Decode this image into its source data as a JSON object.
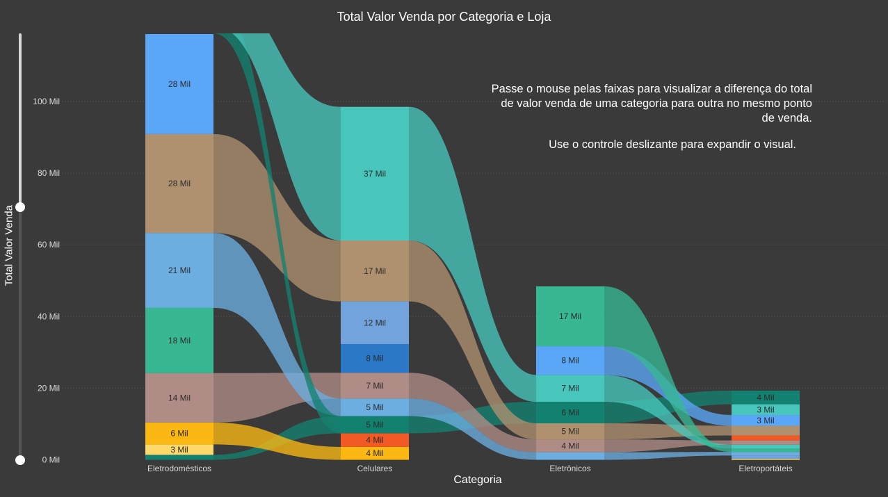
{
  "title": "Total Valor Venda por Categoria e Loja",
  "notes": {
    "line1": "Passe o mouse pelas faixas para visualizar a diferença do total de valor venda de uma categoria para outra no mesmo ponto de venda.",
    "line2": "Use o controle deslizante para expandir o visual."
  },
  "colors": {
    "background": "#3a3a3a",
    "gridline": "#5a5a5a",
    "axis_text": "#d9d9d9",
    "segment_label": "#2b2b2b"
  },
  "chart_data": {
    "type": "ribbon",
    "title": "Total Valor Venda por Categoria e Loja",
    "xlabel": "Categoria",
    "ylabel": "Total Valor Venda",
    "ylim": [
      0,
      119
    ],
    "yticks": [
      {
        "value": 0,
        "label": "0 Mil"
      },
      {
        "value": 20,
        "label": "20 Mil"
      },
      {
        "value": 40,
        "label": "40 Mil"
      },
      {
        "value": 60,
        "label": "60 Mil"
      },
      {
        "value": 80,
        "label": "80 Mil"
      },
      {
        "value": 100,
        "label": "100 Mil"
      }
    ],
    "grid": true,
    "categories": [
      "Eletrodomésticos",
      "Celulares",
      "Eletrônicos",
      "Eletroportáteis"
    ],
    "stores": [
      {
        "id": "S1",
        "color": "#5ba7f7"
      },
      {
        "id": "S2",
        "color": "#b0916f"
      },
      {
        "id": "S3",
        "color": "#6caee0"
      },
      {
        "id": "S4",
        "color": "#37b893"
      },
      {
        "id": "S5",
        "color": "#b08c86"
      },
      {
        "id": "S6",
        "color": "#fbb813"
      },
      {
        "id": "S7",
        "color": "#fdd96b"
      },
      {
        "id": "S8",
        "color": "#138170"
      },
      {
        "id": "S9",
        "color": "#48c6bc"
      },
      {
        "id": "S10",
        "color": "#73a3dd"
      },
      {
        "id": "S11",
        "color": "#2b79c6"
      },
      {
        "id": "S12",
        "color": "#f15a24"
      }
    ],
    "stacks": [
      {
        "category": "Eletrodomésticos",
        "segments": [
          {
            "store": "S8",
            "value": 1.4,
            "label": ""
          },
          {
            "store": "S7",
            "value": 2.9,
            "label": "3 Mil"
          },
          {
            "store": "S6",
            "value": 6.1,
            "label": "6 Mil"
          },
          {
            "store": "S5",
            "value": 13.8,
            "label": "14 Mil"
          },
          {
            "store": "S4",
            "value": 18.2,
            "label": "18 Mil"
          },
          {
            "store": "S3",
            "value": 20.9,
            "label": "21 Mil"
          },
          {
            "store": "S2",
            "value": 27.6,
            "label": "28 Mil"
          },
          {
            "store": "S1",
            "value": 27.9,
            "label": "28 Mil"
          }
        ]
      },
      {
        "category": "Celulares",
        "segments": [
          {
            "store": "S6",
            "value": 3.6,
            "label": "4 Mil"
          },
          {
            "store": "S12",
            "value": 3.8,
            "label": "4 Mil"
          },
          {
            "store": "S8",
            "value": 4.8,
            "label": "5 Mil"
          },
          {
            "store": "S3",
            "value": 4.9,
            "label": "5 Mil"
          },
          {
            "store": "S5",
            "value": 7.2,
            "label": "7 Mil"
          },
          {
            "store": "S11",
            "value": 8.0,
            "label": "8 Mil"
          },
          {
            "store": "S10",
            "value": 11.9,
            "label": "12 Mil"
          },
          {
            "store": "S2",
            "value": 17.0,
            "label": "17 Mil"
          },
          {
            "store": "S9",
            "value": 37.3,
            "label": "37 Mil"
          }
        ]
      },
      {
        "category": "Eletrônicos",
        "segments": [
          {
            "store": "S3",
            "value": 2.1,
            "label": ""
          },
          {
            "store": "S5",
            "value": 3.6,
            "label": "4 Mil"
          },
          {
            "store": "S2",
            "value": 4.5,
            "label": "5 Mil"
          },
          {
            "store": "S8",
            "value": 6.0,
            "label": "6 Mil"
          },
          {
            "store": "S9",
            "value": 7.5,
            "label": "7 Mil"
          },
          {
            "store": "S1",
            "value": 8.0,
            "label": "8 Mil"
          },
          {
            "store": "S4",
            "value": 16.7,
            "label": "17 Mil"
          }
        ]
      },
      {
        "category": "Eletroportáteis",
        "segments": [
          {
            "store": "S7",
            "value": 0.3,
            "label": ""
          },
          {
            "store": "S10",
            "value": 0.9,
            "label": ""
          },
          {
            "store": "S3",
            "value": 1.0,
            "label": ""
          },
          {
            "store": "S4",
            "value": 1.0,
            "label": ""
          },
          {
            "store": "S9",
            "value": 1.0,
            "label": ""
          },
          {
            "store": "S5",
            "value": 1.2,
            "label": ""
          },
          {
            "store": "S12",
            "value": 1.4,
            "label": ""
          },
          {
            "store": "S2",
            "value": 2.7,
            "label": ""
          },
          {
            "store": "S1",
            "value": 3.0,
            "label": "3 Mil"
          },
          {
            "store": "S9",
            "value": 3.0,
            "label": "3 Mil"
          },
          {
            "store": "S8",
            "value": 3.8,
            "label": "4 Mil"
          }
        ]
      }
    ],
    "offscreen_ribbons": [
      {
        "store": "S8",
        "category": "Eletrodomésticos",
        "value": 9.0
      },
      {
        "store": "S9",
        "category": "Eletrodomésticos",
        "value": 10.5
      }
    ]
  }
}
